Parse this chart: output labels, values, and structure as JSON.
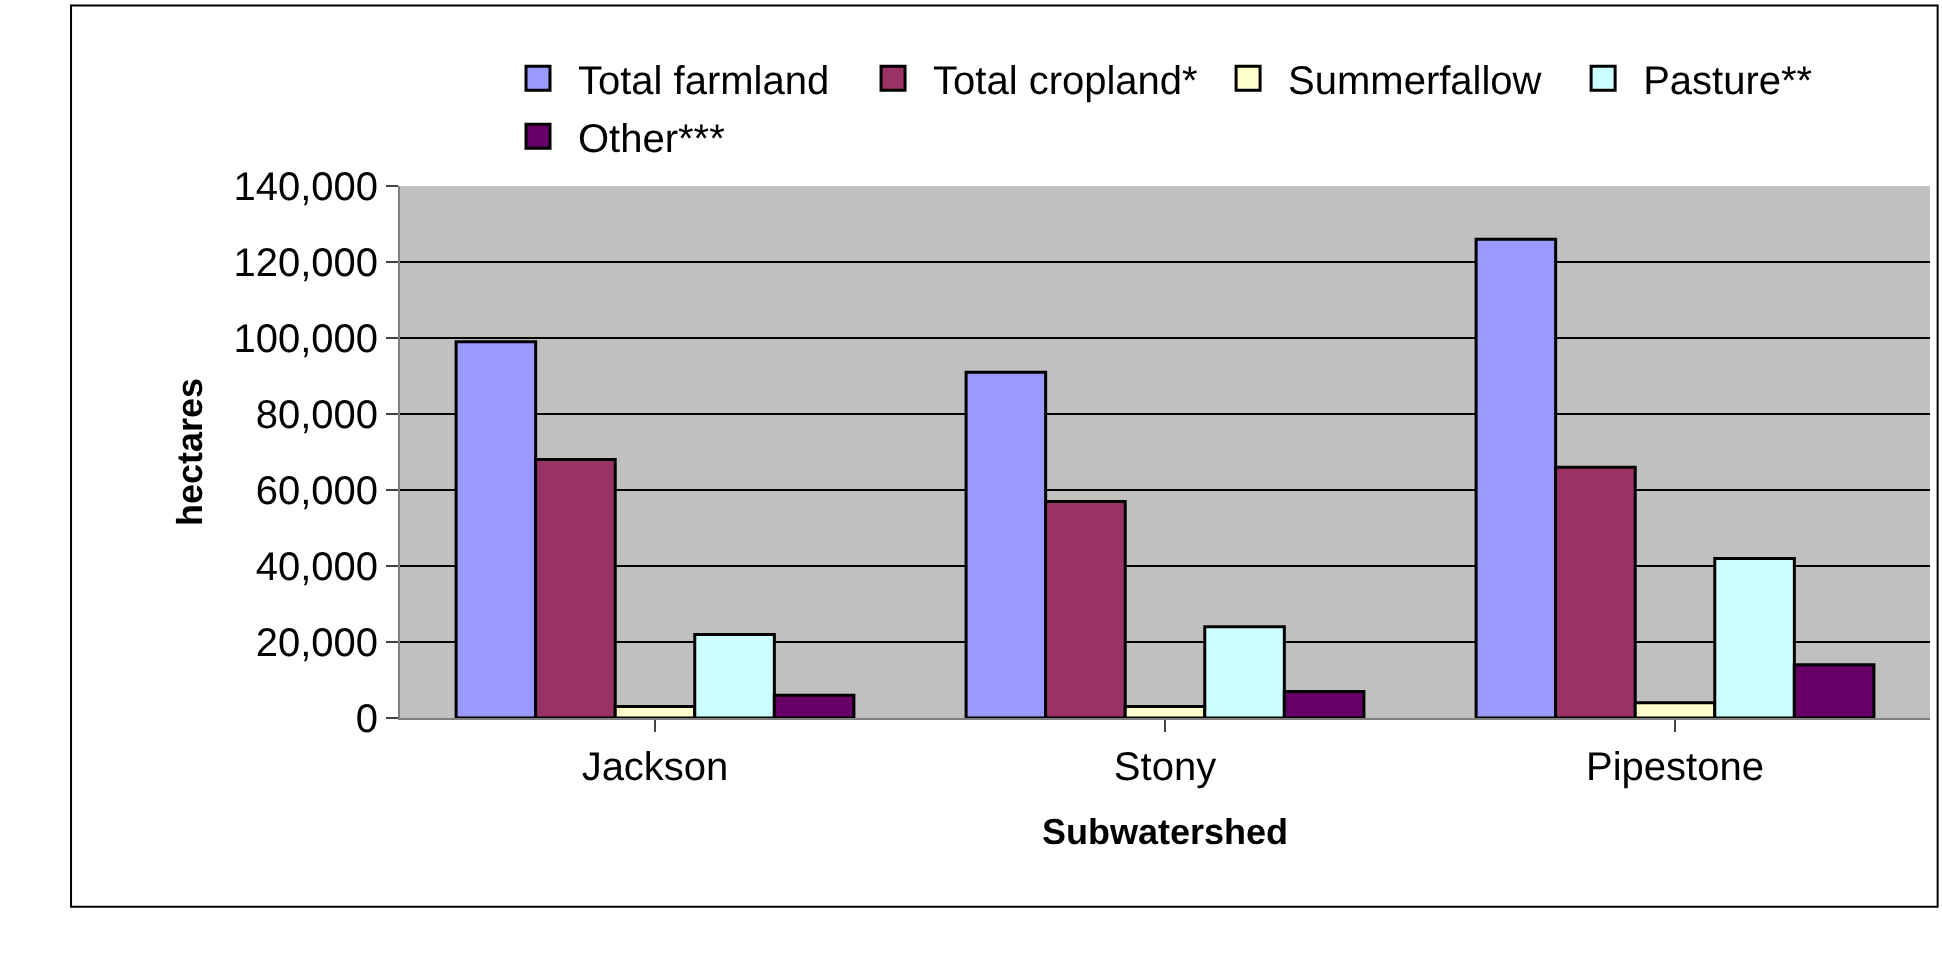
{
  "chart_data": {
    "type": "bar",
    "xlabel": "Subwatershed",
    "ylabel": "hectares",
    "categories": [
      "Jackson",
      "Stony",
      "Pipestone"
    ],
    "series": [
      {
        "name": "Total farmland",
        "color": "#9999ff",
        "values": [
          99000,
          91000,
          126000
        ]
      },
      {
        "name": "Total cropland*",
        "color": "#993366",
        "values": [
          68000,
          57000,
          66000
        ]
      },
      {
        "name": "Summerfallow",
        "color": "#ffffcc",
        "values": [
          3000,
          3000,
          4000
        ]
      },
      {
        "name": "Pasture**",
        "color": "#ccffff",
        "values": [
          22000,
          24000,
          42000
        ]
      },
      {
        "name": "Other***",
        "color": "#660066",
        "values": [
          6000,
          7000,
          14000
        ]
      }
    ],
    "ylim": [
      0,
      140000
    ],
    "yticks": [
      {
        "value": 0,
        "label": "0"
      },
      {
        "value": 20000,
        "label": "20,000"
      },
      {
        "value": 40000,
        "label": "40,000"
      },
      {
        "value": 60000,
        "label": "60,000"
      },
      {
        "value": 80000,
        "label": "80,000"
      },
      {
        "value": 100000,
        "label": "100,000"
      },
      {
        "value": 120000,
        "label": "120,000"
      },
      {
        "value": 140000,
        "label": "140,000"
      }
    ],
    "grid": "y",
    "legend": "top"
  }
}
